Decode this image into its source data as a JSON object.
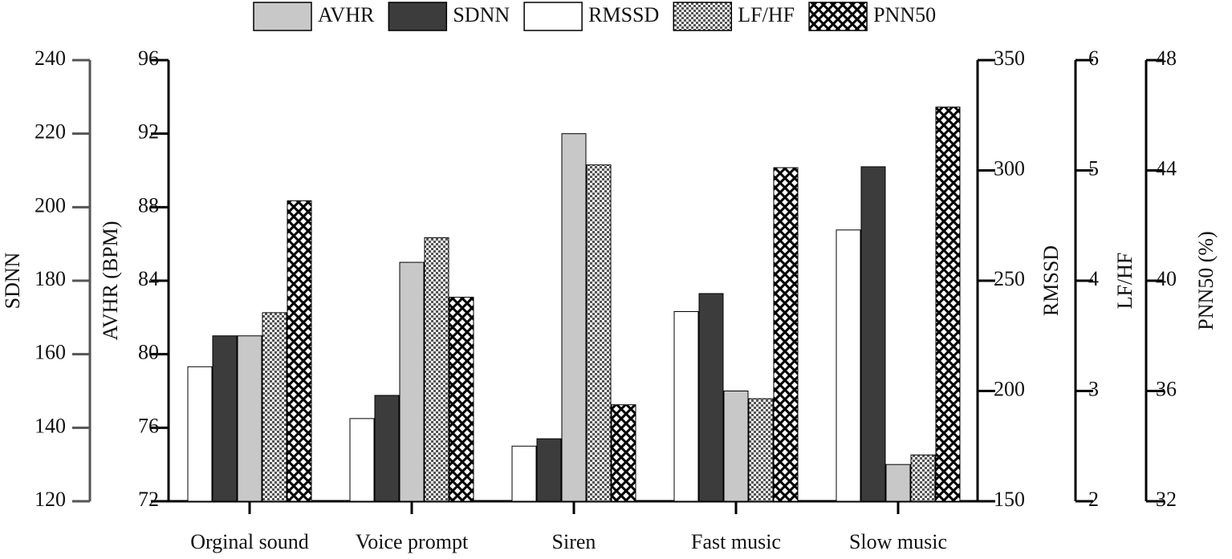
{
  "chart_data": {
    "type": "bar",
    "categories": [
      "Orginal sound",
      "Voice prompt",
      "Siren",
      "Fast music",
      "Slow music"
    ],
    "series": [
      {
        "name": "AVHR",
        "color": "#c8c8c8",
        "pattern": "solid",
        "axis": "y",
        "values": [
          81,
          85,
          92,
          78,
          74
        ]
      },
      {
        "name": "SDNN",
        "color": "#3c3c3c",
        "pattern": "solid",
        "axis": "y2",
        "values": [
          165,
          148.8,
          137,
          176.5,
          211
        ]
      },
      {
        "name": "RMSSD",
        "color": "#ffffff",
        "pattern": "solid",
        "axis": "y3",
        "values": [
          211,
          187.5,
          175,
          236,
          273
        ]
      },
      {
        "name": "LF/HF",
        "color": "#555555",
        "pattern": "checker",
        "axis": "y4",
        "values": [
          3.71,
          4.39,
          5.05,
          2.93,
          2.42
        ]
      },
      {
        "name": "PNN50",
        "color": "#000000",
        "pattern": "crosshatch",
        "axis": "y5",
        "values": [
          42.9,
          39.4,
          35.5,
          44.1,
          46.3
        ]
      }
    ],
    "ylabel": "AVHR (BPM)",
    "ylim": [
      72,
      96
    ],
    "yticks": [
      72,
      76,
      80,
      84,
      88,
      92,
      96
    ],
    "y2label": "SDNN",
    "y2lim": [
      120,
      240
    ],
    "y2ticks": [
      120,
      140,
      160,
      180,
      200,
      220,
      240
    ],
    "y3label": "RMSSD",
    "y3lim": [
      150,
      350
    ],
    "y3ticks": [
      150,
      200,
      250,
      300,
      350
    ],
    "y4label": "LF/HF",
    "y4lim": [
      2,
      6
    ],
    "y4ticks": [
      2,
      3,
      4,
      5,
      6
    ],
    "y5label": "PNN50 (%)",
    "y5lim": [
      32,
      48
    ],
    "y5ticks": [
      32,
      36,
      40,
      44,
      48
    ],
    "legend": "top"
  }
}
